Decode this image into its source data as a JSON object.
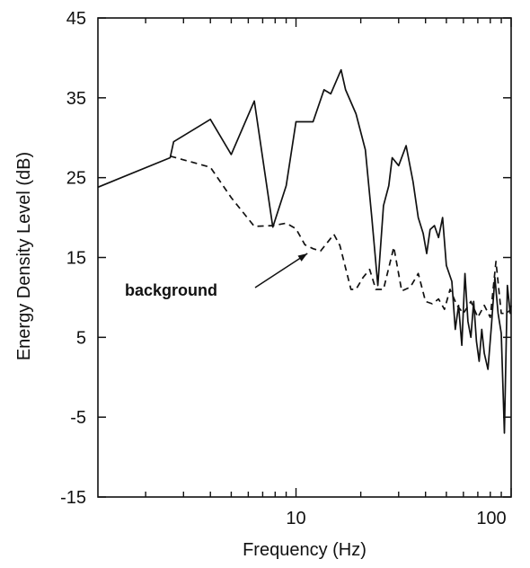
{
  "chart_data": {
    "type": "line",
    "title": "",
    "xlabel": "Frequency (Hz)",
    "ylabel": "Energy Density Level (dB)",
    "xscale": "log",
    "xlim": [
      1.2,
      100
    ],
    "ylim": [
      -15,
      45
    ],
    "xticks": [
      10,
      100
    ],
    "xtick_labels": [
      "10",
      "100"
    ],
    "yticks": [
      45,
      35,
      25,
      15,
      5,
      -5,
      -15
    ],
    "ytick_labels": [
      "45",
      "35",
      "25",
      "15",
      "5",
      "-5",
      "-15"
    ],
    "grid": false,
    "colors": {
      "line": "#111111",
      "axis": "#111111"
    },
    "series": [
      {
        "name": "",
        "style": "solid",
        "points": [
          [
            1.2,
            23.8
          ],
          [
            2.6,
            27.5
          ],
          [
            2.7,
            29.5
          ],
          [
            4.0,
            32.3
          ],
          [
            5.0,
            27.9
          ],
          [
            6.4,
            34.6
          ],
          [
            7.8,
            18.8
          ],
          [
            9.0,
            24.0
          ],
          [
            10.0,
            32.0
          ],
          [
            12.0,
            32.0
          ],
          [
            13.5,
            36.0
          ],
          [
            14.5,
            35.5
          ],
          [
            16.2,
            38.5
          ],
          [
            17.0,
            36.0
          ],
          [
            19.0,
            33.0
          ],
          [
            21.0,
            28.5
          ],
          [
            22.5,
            20.0
          ],
          [
            24.0,
            11.5
          ],
          [
            25.5,
            21.5
          ],
          [
            27.0,
            24.0
          ],
          [
            28.0,
            27.5
          ],
          [
            30.0,
            26.5
          ],
          [
            32.5,
            29.0
          ],
          [
            35.0,
            24.5
          ],
          [
            37.0,
            20.0
          ],
          [
            39.0,
            18.0
          ],
          [
            40.5,
            15.5
          ],
          [
            42.0,
            18.5
          ],
          [
            44.0,
            19.0
          ],
          [
            46.0,
            17.5
          ],
          [
            48.0,
            20.0
          ],
          [
            50.0,
            14.0
          ],
          [
            53.0,
            12.0
          ],
          [
            55.0,
            6.0
          ],
          [
            57.0,
            9.0
          ],
          [
            59.0,
            4.0
          ],
          [
            61.0,
            13.0
          ],
          [
            63.0,
            7.0
          ],
          [
            65.0,
            5.0
          ],
          [
            67.0,
            9.5
          ],
          [
            69.0,
            4.5
          ],
          [
            71.0,
            2.0
          ],
          [
            73.0,
            6.0
          ],
          [
            75.0,
            3.0
          ],
          [
            78.0,
            1.0
          ],
          [
            81.0,
            6.5
          ],
          [
            84.0,
            12.5
          ],
          [
            87.0,
            8.0
          ],
          [
            90.0,
            5.5
          ],
          [
            93.0,
            -7.0
          ],
          [
            96.0,
            11.5
          ],
          [
            99.0,
            8.0
          ],
          [
            100.0,
            9.0
          ]
        ]
      },
      {
        "name": "background",
        "style": "dashed",
        "points": [
          [
            2.6,
            27.7
          ],
          [
            4.0,
            26.3
          ],
          [
            5.0,
            22.5
          ],
          [
            6.4,
            18.9
          ],
          [
            7.8,
            19.0
          ],
          [
            9.0,
            19.3
          ],
          [
            10.0,
            18.6
          ],
          [
            11.0,
            16.6
          ],
          [
            12.0,
            16.1
          ],
          [
            13.0,
            15.8
          ],
          [
            15.0,
            17.9
          ],
          [
            16.0,
            16.5
          ],
          [
            18.0,
            11.0
          ],
          [
            19.0,
            11.0
          ],
          [
            20.5,
            12.5
          ],
          [
            22.0,
            13.5
          ],
          [
            23.5,
            11.0
          ],
          [
            25.5,
            11.0
          ],
          [
            28.5,
            16.3
          ],
          [
            31.0,
            10.8
          ],
          [
            34.0,
            11.3
          ],
          [
            37.0,
            13.0
          ],
          [
            40.0,
            9.5
          ],
          [
            43.0,
            9.2
          ],
          [
            46.0,
            9.8
          ],
          [
            49.0,
            8.5
          ],
          [
            52.0,
            11.0
          ],
          [
            56.0,
            9.0
          ],
          [
            60.0,
            8.0
          ],
          [
            65.0,
            9.5
          ],
          [
            70.0,
            7.5
          ],
          [
            75.0,
            9.0
          ],
          [
            80.0,
            7.5
          ],
          [
            85.0,
            14.5
          ],
          [
            90.0,
            8.0
          ],
          [
            95.0,
            8.0
          ],
          [
            100.0,
            8.5
          ]
        ]
      }
    ],
    "annotations": [
      {
        "text": "background",
        "arrow_to": [
          11.3,
          15.5
        ]
      }
    ]
  }
}
